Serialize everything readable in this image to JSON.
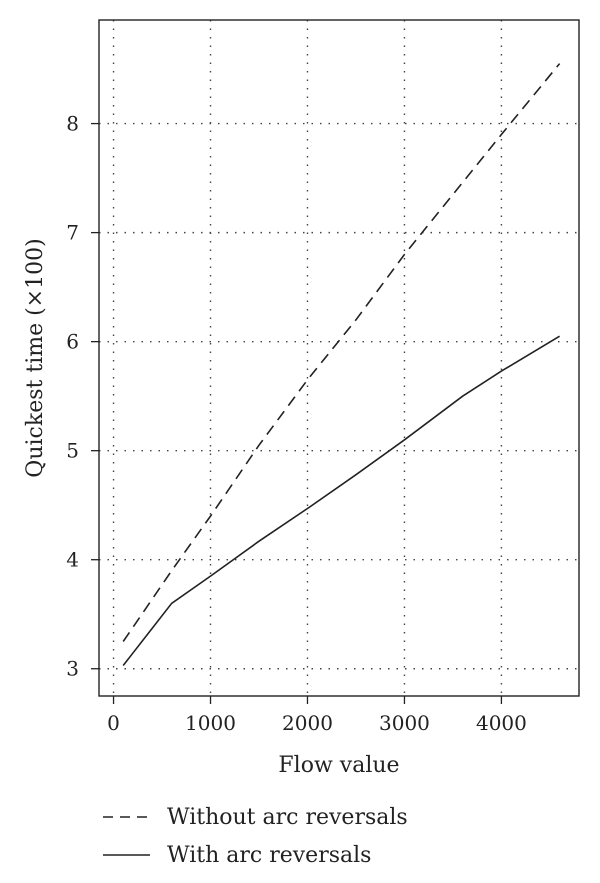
{
  "chart_data": {
    "type": "line",
    "xlabel": "Flow value",
    "ylabel": "Quickest time (×100)",
    "xlim": [
      -150,
      4800
    ],
    "ylim": [
      2.75,
      8.95
    ],
    "x_ticks": [
      0,
      1000,
      2000,
      3000,
      4000
    ],
    "y_ticks": [
      3,
      4,
      5,
      6,
      7,
      8
    ],
    "grid": true,
    "legend_position": "bottom",
    "series": [
      {
        "name": "Without arc reversals",
        "style": "dashed",
        "color": "#222222",
        "points": [
          [
            100,
            3.25
          ],
          [
            600,
            3.9
          ],
          [
            1000,
            4.4
          ],
          [
            1500,
            5.05
          ],
          [
            2000,
            5.65
          ],
          [
            2500,
            6.2
          ],
          [
            3000,
            6.8
          ],
          [
            3500,
            7.35
          ],
          [
            4000,
            7.9
          ],
          [
            4600,
            8.55
          ]
        ]
      },
      {
        "name": "With arc reversals",
        "style": "solid",
        "color": "#222222",
        "points": [
          [
            100,
            3.03
          ],
          [
            600,
            3.6
          ],
          [
            1000,
            3.85
          ],
          [
            1500,
            4.17
          ],
          [
            2000,
            4.47
          ],
          [
            2500,
            4.78
          ],
          [
            3000,
            5.1
          ],
          [
            3600,
            5.5
          ],
          [
            4000,
            5.73
          ],
          [
            4600,
            6.05
          ]
        ]
      }
    ]
  }
}
